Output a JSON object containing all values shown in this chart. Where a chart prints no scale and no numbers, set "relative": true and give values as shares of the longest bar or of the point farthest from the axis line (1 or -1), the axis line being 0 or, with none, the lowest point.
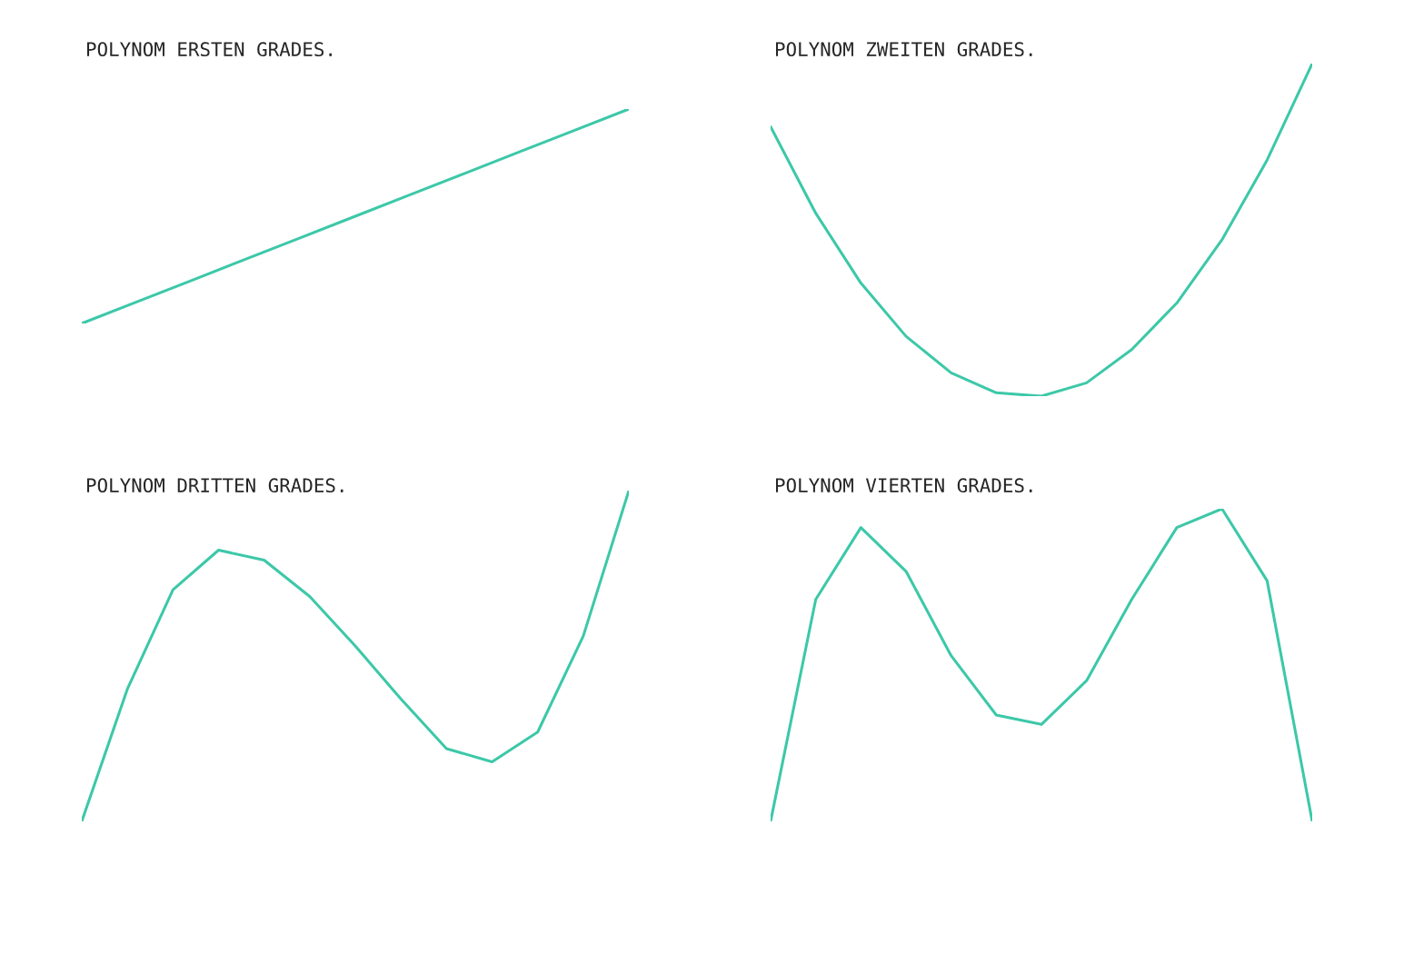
{
  "chart_data": [
    {
      "type": "line",
      "title": "POLYNOM ERSTEN GRADES.",
      "relative": true,
      "categories": [
        null,
        null,
        null,
        null,
        null,
        null,
        null,
        null,
        null,
        null,
        null
      ],
      "color": "#3cc8a8",
      "values": [
        0,
        0.1,
        0.2,
        0.3,
        0.4,
        0.5,
        0.6,
        0.7,
        0.8,
        0.9,
        1
      ]
    },
    {
      "type": "line",
      "title": "POLYNOM ZWEITEN GRADES.",
      "relative": true,
      "categories": [
        null,
        null,
        null,
        null,
        null,
        null,
        null,
        null,
        null,
        null,
        null,
        null,
        null
      ],
      "color": "#3cc8a8",
      "values": [
        0.81,
        0.55,
        0.34,
        0.18,
        0.07,
        0.01,
        0,
        0.04,
        0.14,
        0.28,
        0.47,
        0.71,
        1
      ]
    },
    {
      "type": "line",
      "title": "POLYNOM DRITTEN GRADES.",
      "relative": true,
      "categories": [
        null,
        null,
        null,
        null,
        null,
        null,
        null,
        null,
        null,
        null,
        null,
        null,
        null
      ],
      "color": "#3cc8a8",
      "values": [
        0,
        0.4,
        0.7,
        0.82,
        0.79,
        0.68,
        0.53,
        0.37,
        0.22,
        0.18,
        0.27,
        0.56,
        1
      ]
    },
    {
      "type": "line",
      "title": "POLYNOM VIERTEN GRADES.",
      "relative": true,
      "categories": [
        null,
        null,
        null,
        null,
        null,
        null,
        null,
        null,
        null,
        null,
        null,
        null,
        null
      ],
      "color": "#3cc8a8",
      "values": [
        0,
        0.71,
        0.94,
        0.8,
        0.53,
        0.34,
        0.31,
        0.45,
        0.71,
        0.94,
        1,
        0.77,
        0
      ]
    }
  ]
}
